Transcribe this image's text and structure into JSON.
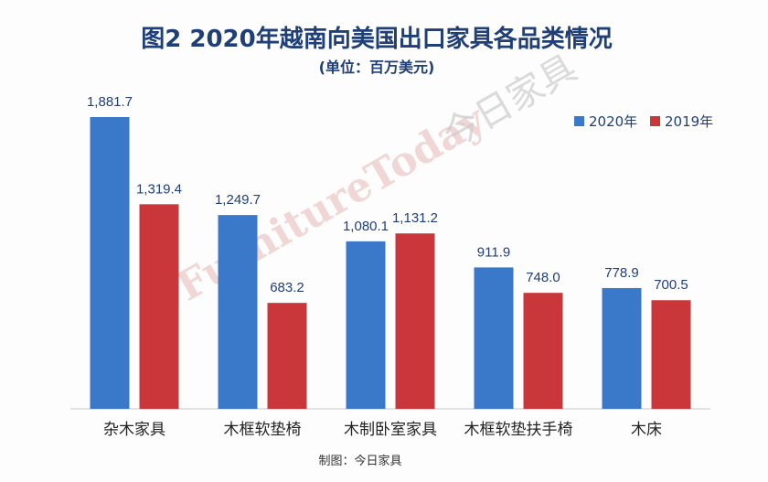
{
  "watermark": {
    "latin": "FurnitureToday",
    "cjk": "今日家具"
  },
  "footer": "制图：今日家具",
  "colors": {
    "s2020": "#3a78c9",
    "s2019": "#c9373a",
    "text": "#1f3f78"
  },
  "chart_data": {
    "type": "bar",
    "title": "图2 2020年越南向美国出口家具各品类情况",
    "subtitle": "(单位：百万美元)",
    "categories": [
      "杂木家具",
      "木框软垫椅",
      "木制卧室家具",
      "木框软垫扶手椅",
      "木床"
    ],
    "series": [
      {
        "name": "2020年",
        "values": [
          1881.7,
          1249.7,
          1080.1,
          911.9,
          778.9
        ],
        "labels": [
          "1,881.7",
          "1,249.7",
          "1,080.1",
          "911.9",
          "778.9"
        ]
      },
      {
        "name": "2019年",
        "values": [
          1319.4,
          683.2,
          1131.2,
          748.0,
          700.5
        ],
        "labels": [
          "1,319.4",
          "683.2",
          "1,131.2",
          "748.0",
          "700.5"
        ]
      }
    ],
    "ylim": [
      0,
      1881.7
    ],
    "legend": "top-right",
    "grid": false
  }
}
